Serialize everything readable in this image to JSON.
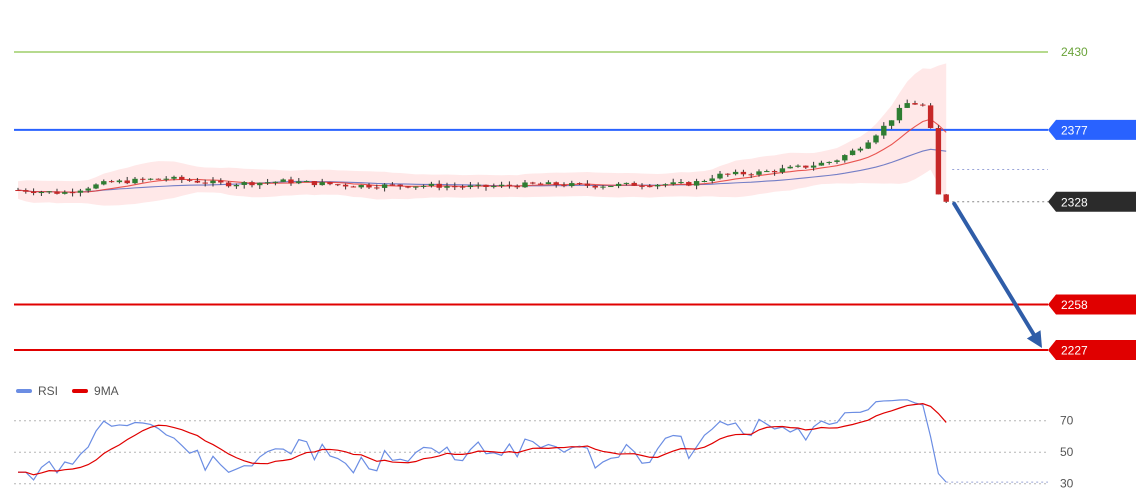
{
  "chart_data": [
    {
      "type": "candlestick",
      "y_range": [
        2210,
        2445
      ],
      "levels": [
        {
          "value": 2430,
          "label": "2430",
          "color": "#8bc34a",
          "style": "thin"
        },
        {
          "value": 2377,
          "label": "2377",
          "color": "#2962ff",
          "style": "thick"
        },
        {
          "value": 2328,
          "label": "2328",
          "color": "#2b2b2b",
          "style": "dotted"
        },
        {
          "value": 2258,
          "label": "2258",
          "color": "#e00000",
          "style": "thick"
        },
        {
          "value": 2227,
          "label": "2227",
          "color": "#e00000",
          "style": "thick"
        }
      ],
      "current_price": 2328,
      "ma_last": 2350,
      "arrow": {
        "from": 2328,
        "to": 2227,
        "direction": "down",
        "color": "#2f5da8"
      },
      "candle_count": 120,
      "colors": {
        "up": "#2e7d32",
        "down": "#c62828",
        "band_fill": "#ffd6d6",
        "ma_short": "#e53935",
        "ma_long": "#5c6bc0"
      }
    },
    {
      "type": "line",
      "legend": [
        {
          "name": "RSI",
          "color": "#6b8de3"
        },
        {
          "name": "9MA",
          "color": "#e00000"
        }
      ],
      "y_ticks": [
        70,
        50,
        30
      ],
      "y_range": [
        26,
        80
      ],
      "rsi_last": 31
    }
  ]
}
